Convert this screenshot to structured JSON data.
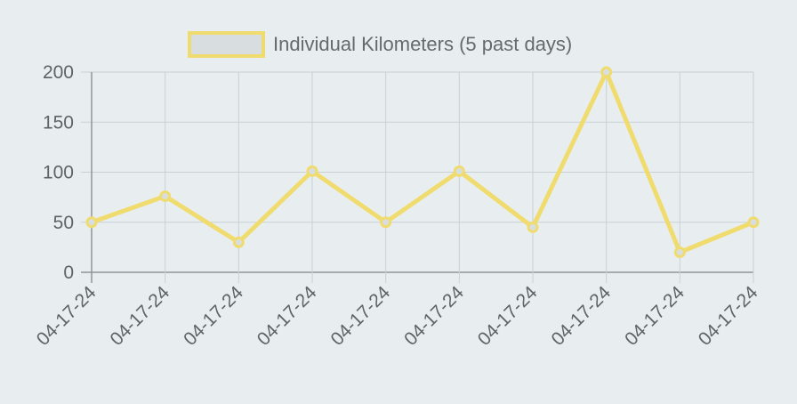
{
  "chart_data": {
    "type": "line",
    "categories": [
      "04-17-24",
      "04-17-24",
      "04-17-24",
      "04-17-24",
      "04-17-24",
      "04-17-24",
      "04-17-24",
      "04-17-24",
      "04-17-24",
      "04-17-24"
    ],
    "series": [
      {
        "name": "Individual Kilometers (5 past days)",
        "values": [
          50,
          76,
          30,
          101,
          50,
          101,
          45,
          200,
          20,
          50
        ],
        "color": "#f0dc6e",
        "fill": "#d8dedf"
      }
    ],
    "ylim": [
      0,
      200
    ],
    "yticks": [
      0,
      50,
      100,
      150,
      200
    ],
    "grid": true,
    "legend": "top-center"
  }
}
